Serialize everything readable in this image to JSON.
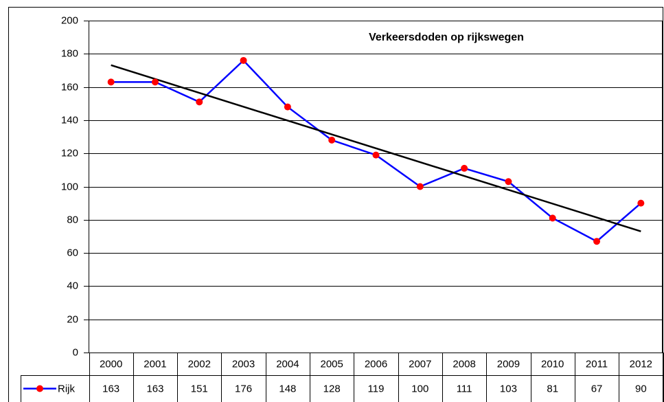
{
  "chart_data": {
    "type": "line",
    "title": "Verkeersdoden op rijkswegen",
    "categories": [
      "2000",
      "2001",
      "2002",
      "2003",
      "2004",
      "2005",
      "2006",
      "2007",
      "2008",
      "2009",
      "2010",
      "2011",
      "2012"
    ],
    "series": [
      {
        "name": "Rijk",
        "color": "#0000ff",
        "marker_color": "#ff0000",
        "values": [
          163,
          163,
          151,
          176,
          148,
          128,
          119,
          100,
          111,
          103,
          81,
          67,
          90
        ]
      }
    ],
    "ylim": [
      0,
      200
    ],
    "yticks": [
      0,
      20,
      40,
      60,
      80,
      100,
      120,
      140,
      160,
      180,
      200
    ],
    "grid": true,
    "trendline": "linear",
    "trendline_color": "#000000",
    "data_table": true
  }
}
